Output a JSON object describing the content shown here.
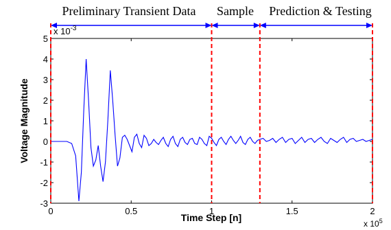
{
  "chart_data": {
    "type": "line",
    "title": "",
    "xlabel": "Time Step [n]",
    "ylabel": "Voltage Magnitude",
    "x_multiplier": "x 10",
    "x_multiplier_exp": "5",
    "y_multiplier": "x 10",
    "y_multiplier_exp": "-3",
    "xlim": [
      0,
      2
    ],
    "ylim": [
      -3,
      5
    ],
    "xticks": [
      0,
      0.5,
      1,
      1.5,
      2
    ],
    "xtick_labels": [
      "0",
      "0.5",
      "1",
      "1.5",
      "2"
    ],
    "yticks": [
      -3,
      -2,
      -1,
      0,
      1,
      2,
      3,
      4,
      5
    ],
    "ytick_labels": [
      "-3",
      "-2",
      "-1",
      "0",
      "1",
      "2",
      "3",
      "4",
      "5"
    ],
    "grid": false,
    "line_color": "#0000ff",
    "series": [
      {
        "x": [
          0,
          0.05,
          0.1,
          0.13,
          0.155,
          0.175,
          0.19,
          0.205,
          0.22,
          0.235,
          0.25,
          0.265,
          0.28,
          0.295,
          0.31,
          0.325,
          0.34,
          0.355,
          0.37,
          0.385,
          0.4,
          0.415,
          0.43,
          0.445,
          0.46,
          0.475,
          0.49,
          0.505,
          0.52,
          0.535,
          0.55,
          0.565,
          0.58,
          0.595,
          0.61,
          0.625,
          0.64,
          0.655,
          0.67,
          0.685,
          0.7,
          0.715,
          0.73,
          0.745,
          0.76,
          0.775,
          0.79,
          0.805,
          0.82,
          0.835,
          0.85,
          0.865,
          0.88,
          0.895,
          0.91,
          0.925,
          0.94,
          0.955,
          0.97,
          0.985,
          1.0,
          1.015,
          1.03,
          1.045,
          1.06,
          1.075,
          1.09,
          1.105,
          1.12,
          1.135,
          1.15,
          1.165,
          1.18,
          1.195,
          1.21,
          1.225,
          1.24,
          1.255,
          1.27,
          1.285,
          1.3,
          1.32,
          1.34,
          1.36,
          1.38,
          1.4,
          1.42,
          1.44,
          1.46,
          1.48,
          1.5,
          1.52,
          1.54,
          1.56,
          1.58,
          1.6,
          1.62,
          1.64,
          1.66,
          1.68,
          1.7,
          1.72,
          1.74,
          1.76,
          1.78,
          1.8,
          1.82,
          1.84,
          1.86,
          1.88,
          1.9,
          1.92,
          1.94,
          1.96,
          1.98,
          2.0
        ],
        "y": [
          0,
          0,
          0,
          -0.1,
          -0.7,
          -2.9,
          -1.5,
          1.5,
          4.0,
          2.0,
          -0.3,
          -1.2,
          -0.9,
          -0.2,
          -1.2,
          -1.95,
          -1.0,
          1.0,
          3.45,
          2.0,
          0.3,
          -1.2,
          -0.8,
          0.2,
          0.3,
          0.1,
          -0.2,
          -0.5,
          0.2,
          0.35,
          -0.1,
          -0.3,
          0.3,
          0.15,
          -0.2,
          -0.1,
          0.1,
          -0.05,
          -0.15,
          0.05,
          0.2,
          -0.1,
          -0.25,
          0.1,
          0.25,
          -0.1,
          -0.25,
          0.1,
          0.2,
          -0.05,
          -0.15,
          0.1,
          0.15,
          -0.1,
          -0.15,
          0.2,
          0.1,
          -0.1,
          -0.2,
          0.25,
          0.15,
          -0.05,
          -0.2,
          0.1,
          0.2,
          0.0,
          -0.15,
          0.1,
          0.25,
          0.05,
          -0.1,
          0.05,
          0.25,
          -0.05,
          -0.15,
          0.1,
          0.2,
          0.0,
          -0.1,
          0.05,
          0.1,
          0.15,
          0.0,
          0.05,
          0.15,
          -0.05,
          0.1,
          0.2,
          -0.05,
          0.1,
          0.15,
          -0.1,
          0.05,
          0.2,
          -0.05,
          0.1,
          0.15,
          -0.05,
          0.1,
          0.2,
          0.0,
          -0.1,
          0.15,
          0.05,
          -0.05,
          0.1,
          0.2,
          -0.05,
          0.1,
          0.15,
          0.0,
          0.05,
          0.1,
          0.0,
          0.05,
          0.1
        ]
      }
    ],
    "annotations": {
      "vlines": [
        0,
        1,
        1.3,
        2
      ],
      "vline_color": "#ff0000",
      "regions": [
        {
          "label": "Preliminary Transient Data",
          "x_start": 0,
          "x_end": 1
        },
        {
          "label": "Sample",
          "x_start": 1,
          "x_end": 1.3
        },
        {
          "label": "Prediction & Testing",
          "x_start": 1.3,
          "x_end": 2
        }
      ]
    }
  }
}
